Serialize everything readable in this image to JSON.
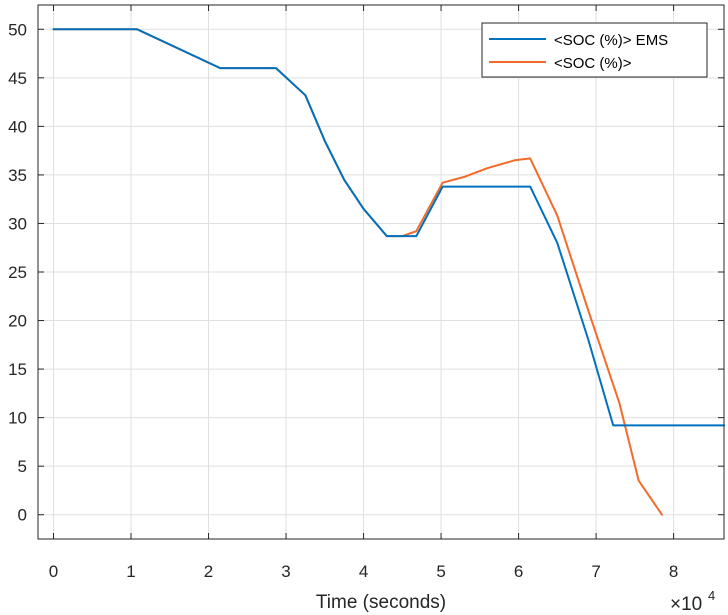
{
  "chart_data": {
    "type": "line",
    "title": "",
    "xlabel": "Time (seconds)",
    "ylabel": "",
    "x_exponent_label": "×10",
    "x_exponent_power": "4",
    "xlim": [
      -0.2,
      8.65
    ],
    "ylim": [
      -2.5,
      52.5
    ],
    "xticks": [
      0,
      1,
      2,
      3,
      4,
      5,
      6,
      7,
      8
    ],
    "xtick_labels": [
      "0",
      "1",
      "2",
      "3",
      "4",
      "5",
      "6",
      "7",
      "8"
    ],
    "yticks": [
      0,
      5,
      10,
      15,
      20,
      25,
      30,
      35,
      40,
      45,
      50
    ],
    "ytick_labels": [
      "0",
      "5",
      "10",
      "15",
      "20",
      "25",
      "30",
      "35",
      "40",
      "45",
      "50"
    ],
    "grid": true,
    "legend_position": "top-right",
    "series": [
      {
        "name": "<SOC (%)> EMS",
        "color": "#0072BD",
        "x": [
          0,
          1.08,
          2.15,
          2.87,
          3.25,
          3.5,
          3.75,
          4.0,
          4.3,
          4.45,
          4.68,
          5.02,
          5.5,
          6.0,
          6.15,
          6.5,
          6.9,
          7.22,
          7.5,
          8.0,
          8.65
        ],
        "y": [
          50,
          50,
          46,
          46,
          43.2,
          38.5,
          34.5,
          31.5,
          28.7,
          28.7,
          28.7,
          33.8,
          33.8,
          33.8,
          33.8,
          28,
          18,
          9.2,
          9.2,
          9.2,
          9.2
        ]
      },
      {
        "name": "<SOC (%)>",
        "color": "#F26B2A",
        "x": [
          0,
          1.08,
          2.15,
          2.87,
          3.25,
          3.5,
          3.75,
          4.0,
          4.3,
          4.5,
          4.68,
          5.02,
          5.3,
          5.6,
          5.95,
          6.15,
          6.5,
          6.9,
          7.3,
          7.55,
          7.85
        ],
        "y": [
          50,
          50,
          46,
          46,
          43.2,
          38.5,
          34.5,
          31.5,
          28.7,
          28.7,
          29.2,
          34.2,
          34.8,
          35.7,
          36.5,
          36.7,
          30.8,
          21,
          11.5,
          3.5,
          0
        ]
      }
    ]
  }
}
